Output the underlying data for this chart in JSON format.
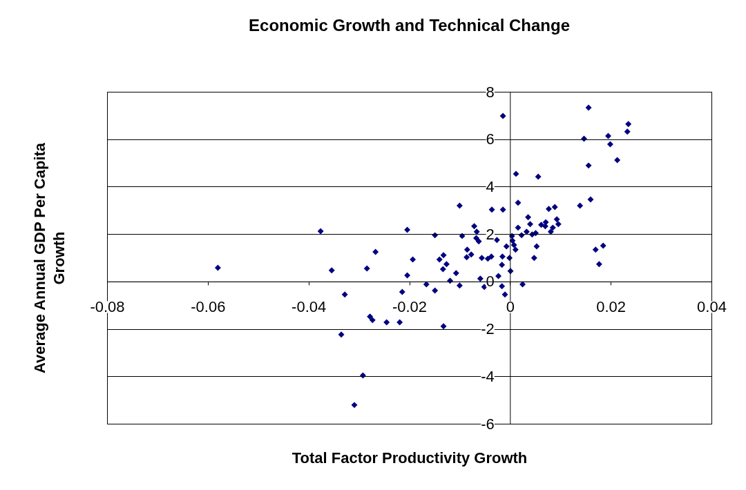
{
  "chart_data": {
    "type": "scatter",
    "title": "Economic Growth and Technical Change",
    "xlabel": "Total Factor Productivity Growth",
    "ylabel": "Average Annual GDP Per Capita Growth",
    "xlim": [
      -0.08,
      0.04
    ],
    "xticks": [
      -0.08,
      -0.06,
      -0.04,
      -0.02,
      0,
      0.02,
      0.04
    ],
    "ylim": [
      -6,
      8
    ],
    "yticks": [
      -6,
      -4,
      -2,
      0,
      2,
      4,
      6,
      8
    ],
    "grid": "y",
    "marker": "diamond",
    "series": [
      {
        "color": "#000080",
        "x": [
          -0.058,
          -0.0376,
          -0.0354,
          -0.0328,
          -0.0335,
          -0.0292,
          -0.0309,
          -0.0284,
          -0.0267,
          -0.0278,
          -0.0273,
          -0.0245,
          -0.0219,
          -0.0204,
          -0.0193,
          -0.0204,
          -0.0214,
          -0.0166,
          -0.0149,
          -0.0149,
          -0.0132,
          -0.0132,
          -0.014,
          -0.0126,
          -0.0133,
          -0.0119,
          -0.0107,
          -0.01,
          -0.01,
          -0.0095,
          -0.0085,
          -0.0077,
          -0.0086,
          -0.0071,
          -0.0066,
          -0.0067,
          -0.0062,
          -0.0056,
          -0.0044,
          -0.0037,
          -0.0059,
          -0.0051,
          -0.0036,
          -0.0026,
          -0.0023,
          -0.0016,
          -0.0014,
          -0.0014,
          -0.0015,
          -0.0016,
          -0.001,
          -0.0007,
          -0.0001,
          0.0001,
          0.0004,
          0.0008,
          0.0005,
          0.0012,
          0.0016,
          0.0023,
          0.0025,
          0.0033,
          0.0036,
          0.004,
          0.0048,
          0.0053,
          0.0056,
          0.0051,
          0.0062,
          0.007,
          0.0077,
          0.0081,
          0.0085,
          0.0089,
          0.0093,
          0.0096,
          0.0139,
          0.0147,
          0.0156,
          0.0156,
          0.016,
          0.017,
          0.0185,
          0.0177,
          0.0195,
          0.0199,
          0.0213,
          0.0235,
          0.0233,
          0.0016,
          0.0071,
          0.0044,
          0.0011
        ],
        "values": [
          0.58,
          2.12,
          0.47,
          -0.55,
          -2.24,
          -3.96,
          -5.21,
          0.55,
          1.25,
          -1.48,
          -1.63,
          -1.72,
          -1.72,
          2.18,
          0.93,
          0.26,
          -0.44,
          -0.12,
          -0.38,
          1.95,
          -1.89,
          1.11,
          0.93,
          0.73,
          0.52,
          0.03,
          0.35,
          -0.17,
          3.2,
          1.92,
          1.34,
          1.14,
          1.02,
          2.33,
          2.1,
          1.83,
          1.69,
          0.99,
          0.96,
          1.05,
          0.12,
          -0.23,
          3.03,
          1.75,
          0.23,
          -0.2,
          3.03,
          6.98,
          1.05,
          0.7,
          -0.55,
          1.48,
          0.99,
          0.44,
          1.92,
          1.54,
          1.72,
          4.54,
          3.32,
          1.95,
          -0.12,
          2.1,
          2.71,
          2.42,
          0.99,
          1.48,
          4.42,
          2.04,
          2.39,
          2.33,
          3.06,
          2.1,
          2.27,
          3.14,
          2.62,
          2.42,
          3.2,
          6.02,
          7.33,
          4.89,
          3.46,
          1.34,
          1.51,
          0.73,
          6.14,
          5.79,
          5.12,
          6.64,
          6.32,
          2.27,
          2.5,
          1.98,
          1.34
        ]
      }
    ]
  }
}
